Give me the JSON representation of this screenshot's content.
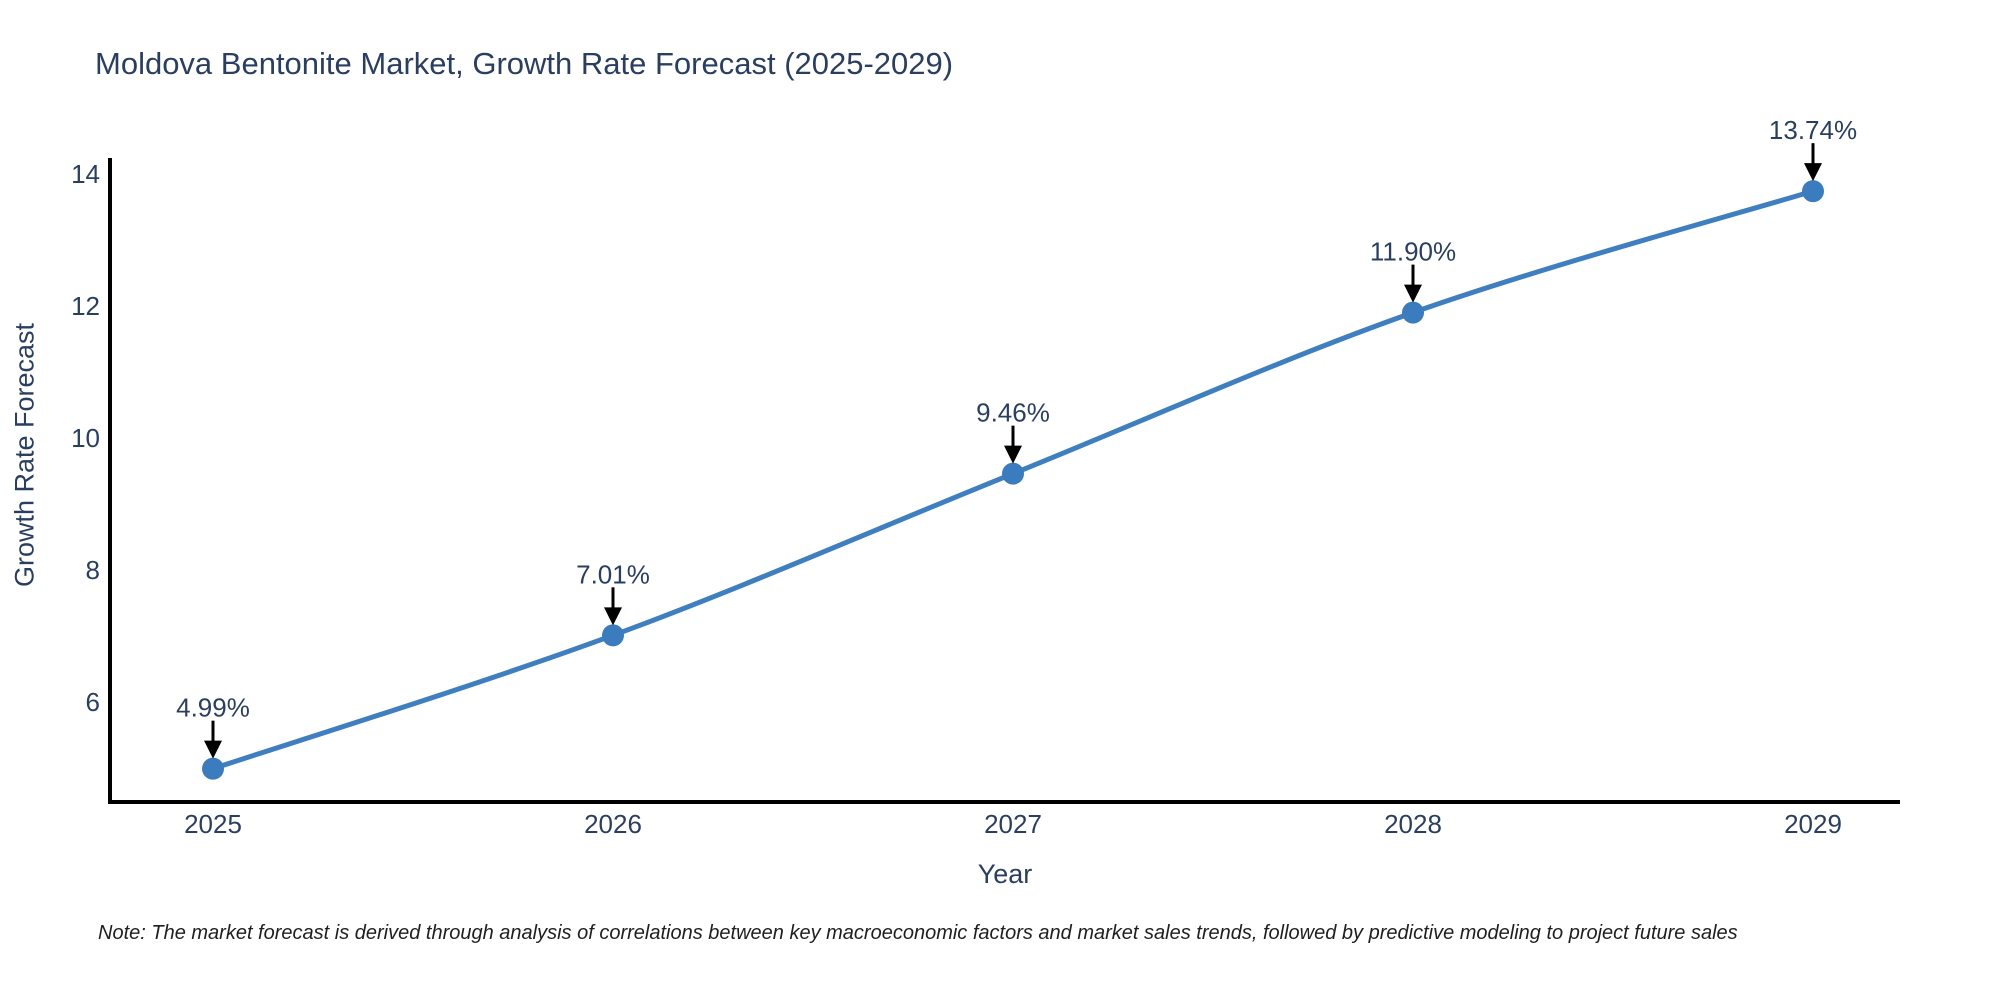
{
  "chart_data": {
    "type": "line",
    "title": "Moldova Bentonite Market, Growth Rate Forecast (2025-2029)",
    "xlabel": "Year",
    "ylabel": "Growth Rate Forecast",
    "categories": [
      "2025",
      "2026",
      "2027",
      "2028",
      "2029"
    ],
    "series": [
      {
        "name": "Growth Rate Forecast",
        "values": [
          4.99,
          7.01,
          9.46,
          11.9,
          13.74
        ]
      }
    ],
    "point_labels": [
      "4.99%",
      "7.01%",
      "9.46%",
      "11.90%",
      "13.74%"
    ],
    "yticks": [
      6,
      8,
      10,
      12,
      14
    ],
    "ylim": [
      4.45,
      14.25
    ],
    "line_shape": "spline",
    "marker": "circle",
    "annotation_arrow": "down-arrow",
    "grid": false,
    "legend": "none",
    "colors": {
      "line": "#3f7fbf",
      "marker": "#3a7cbd",
      "axis": "#000000",
      "text": "#2a3f5f",
      "note_text": "#1f1f1f",
      "background": "#ffffff"
    },
    "note": "Note: The market forecast is derived through analysis of correlations between key macroeconomic factors and market sales trends, followed by predictive modeling to project future sales"
  }
}
